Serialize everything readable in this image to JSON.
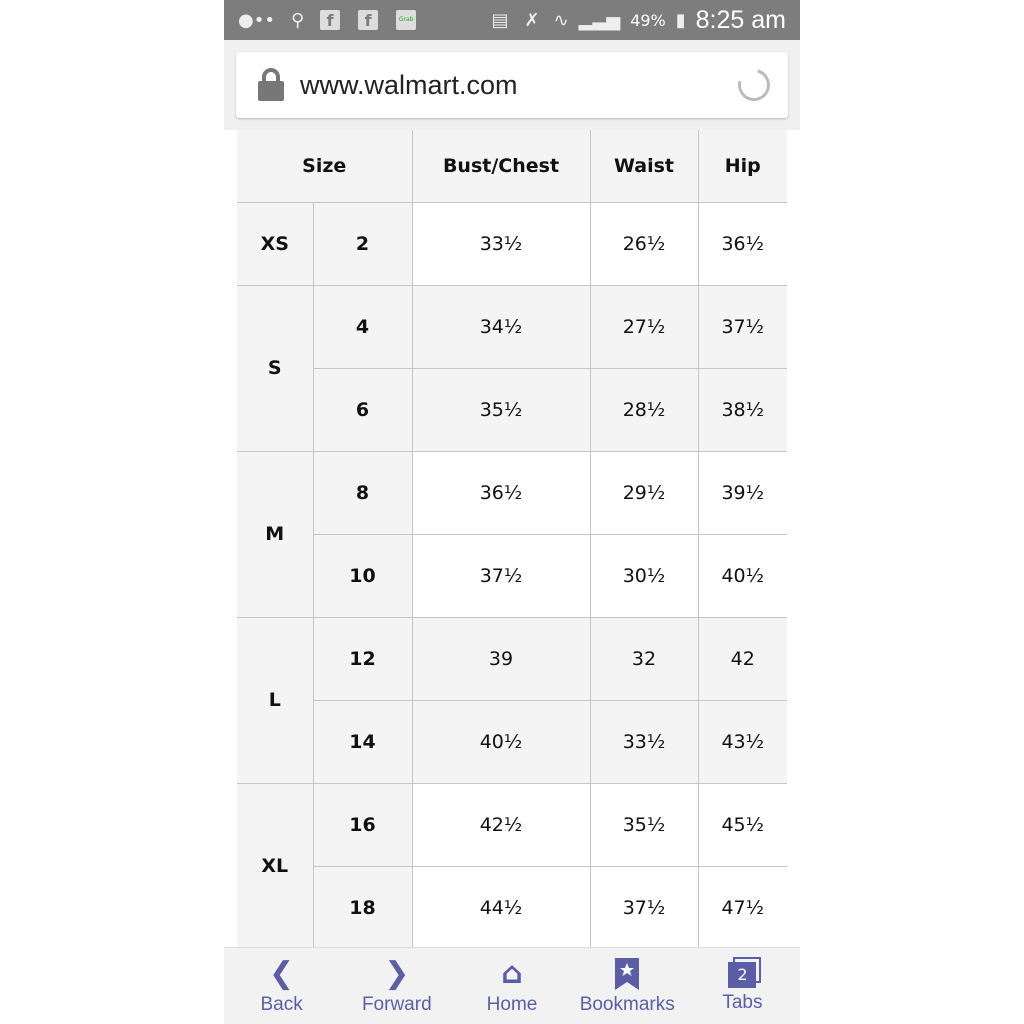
{
  "status_bar": {
    "battery": "49%",
    "time": "8:25 am",
    "icons": [
      "message-icon",
      "location-icon",
      "facebook-icon",
      "facebook-icon",
      "grab-icon",
      "card-icon",
      "mute-icon",
      "wifi-icon",
      "signal-icon",
      "battery-icon"
    ],
    "grab_label": "Grab",
    "fb": "f"
  },
  "address_bar": {
    "url": "www.walmart.com"
  },
  "table": {
    "headers": [
      "Size",
      "Bust/Chest",
      "Waist",
      "Hip"
    ],
    "groups": [
      {
        "letter": "XS",
        "rows": [
          {
            "num": "2",
            "bust": "33½",
            "waist": "26½",
            "hip": "36½"
          }
        ]
      },
      {
        "letter": "S",
        "rows": [
          {
            "num": "4",
            "bust": "34½",
            "waist": "27½",
            "hip": "37½"
          },
          {
            "num": "6",
            "bust": "35½",
            "waist": "28½",
            "hip": "38½"
          }
        ]
      },
      {
        "letter": "M",
        "rows": [
          {
            "num": "8",
            "bust": "36½",
            "waist": "29½",
            "hip": "39½"
          },
          {
            "num": "10",
            "bust": "37½",
            "waist": "30½",
            "hip": "40½"
          }
        ]
      },
      {
        "letter": "L",
        "rows": [
          {
            "num": "12",
            "bust": "39",
            "waist": "32",
            "hip": "42"
          },
          {
            "num": "14",
            "bust": "40½",
            "waist": "33½",
            "hip": "43½"
          }
        ]
      },
      {
        "letter": "XL",
        "rows": [
          {
            "num": "16",
            "bust": "42½",
            "waist": "35½",
            "hip": "45½"
          },
          {
            "num": "18",
            "bust": "44½",
            "waist": "37½",
            "hip": "47½"
          }
        ]
      }
    ]
  },
  "nav": {
    "accent": "#5b5ea6",
    "items": [
      {
        "label": "Back",
        "icon": "chevron-left-icon"
      },
      {
        "label": "Forward",
        "icon": "chevron-right-icon"
      },
      {
        "label": "Home",
        "icon": "home-icon"
      },
      {
        "label": "Bookmarks",
        "icon": "bookmark-icon"
      },
      {
        "label": "Tabs",
        "icon": "tabs-icon",
        "count": "2"
      }
    ]
  }
}
